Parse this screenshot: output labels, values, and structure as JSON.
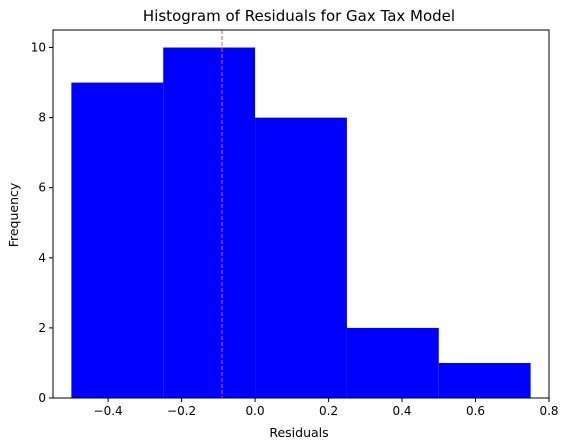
{
  "chart_data": {
    "type": "bar",
    "title": "Histogram of Residuals for Gax Tax Model",
    "xlabel": "Residuals",
    "ylabel": "Frequency",
    "xlim": [
      -0.55,
      0.8
    ],
    "ylim": [
      0,
      10.5
    ],
    "bin_edges": [
      -0.5,
      -0.25,
      0.0,
      0.25,
      0.5,
      0.75
    ],
    "values": [
      9,
      10,
      8,
      2,
      1
    ],
    "bar_color": "#0000ff",
    "reference_line": {
      "x": -0.09,
      "color": "#d65f5f",
      "style": "dashed"
    },
    "xticks": [
      {
        "value": -0.4,
        "label": "−0.4"
      },
      {
        "value": -0.2,
        "label": "−0.2"
      },
      {
        "value": 0.0,
        "label": "0.0"
      },
      {
        "value": 0.2,
        "label": "0.2"
      },
      {
        "value": 0.4,
        "label": "0.4"
      },
      {
        "value": 0.6,
        "label": "0.6"
      },
      {
        "value": 0.8,
        "label": "0.8"
      }
    ],
    "yticks": [
      {
        "value": 0,
        "label": "0"
      },
      {
        "value": 2,
        "label": "2"
      },
      {
        "value": 4,
        "label": "4"
      },
      {
        "value": 6,
        "label": "6"
      },
      {
        "value": 8,
        "label": "8"
      },
      {
        "value": 10,
        "label": "10"
      }
    ],
    "grid": false,
    "legend": "none"
  }
}
